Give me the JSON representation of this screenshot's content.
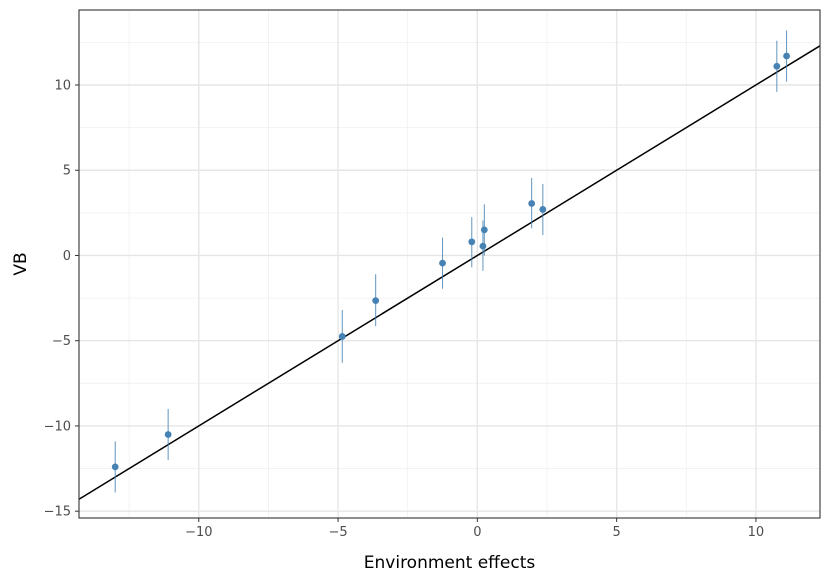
{
  "chart_data": {
    "type": "scatter",
    "title": "",
    "xlabel": "Environment effects",
    "ylabel": "VB",
    "xlim": [
      -14.3,
      12.3
    ],
    "ylim": [
      -15.4,
      14.4
    ],
    "x_ticks": [
      -10,
      -5,
      0,
      5,
      10
    ],
    "y_ticks": [
      -15,
      -10,
      -5,
      0,
      5,
      10
    ],
    "x_tick_labels": [
      "−10",
      "−5",
      "0",
      "5",
      "10"
    ],
    "y_tick_labels": [
      "−15",
      "−10",
      "−5",
      "0",
      "5",
      "10"
    ],
    "grid": true,
    "point_color": "#4682b4",
    "line_color": "#000000",
    "reference_line": {
      "slope": 1,
      "intercept": 0
    },
    "points": [
      {
        "x": -13.0,
        "y": -12.4,
        "ymin": -13.9,
        "ymax": -10.9
      },
      {
        "x": -11.1,
        "y": -10.5,
        "ymin": -12.0,
        "ymax": -9.0
      },
      {
        "x": -4.85,
        "y": -4.75,
        "ymin": -6.3,
        "ymax": -3.2
      },
      {
        "x": -3.65,
        "y": -2.65,
        "ymin": -4.15,
        "ymax": -1.1
      },
      {
        "x": -1.25,
        "y": -0.45,
        "ymin": -1.95,
        "ymax": 1.05
      },
      {
        "x": -0.2,
        "y": 0.8,
        "ymin": -0.7,
        "ymax": 2.25
      },
      {
        "x": 0.2,
        "y": 0.55,
        "ymin": -0.9,
        "ymax": 2.05
      },
      {
        "x": 0.25,
        "y": 1.5,
        "ymin": 0.0,
        "ymax": 3.0
      },
      {
        "x": 1.95,
        "y": 3.05,
        "ymin": 1.6,
        "ymax": 4.55
      },
      {
        "x": 2.35,
        "y": 2.7,
        "ymin": 1.2,
        "ymax": 4.2
      },
      {
        "x": 10.75,
        "y": 11.1,
        "ymin": 9.6,
        "ymax": 12.6
      },
      {
        "x": 11.1,
        "y": 11.7,
        "ymin": 10.2,
        "ymax": 13.2
      }
    ]
  }
}
